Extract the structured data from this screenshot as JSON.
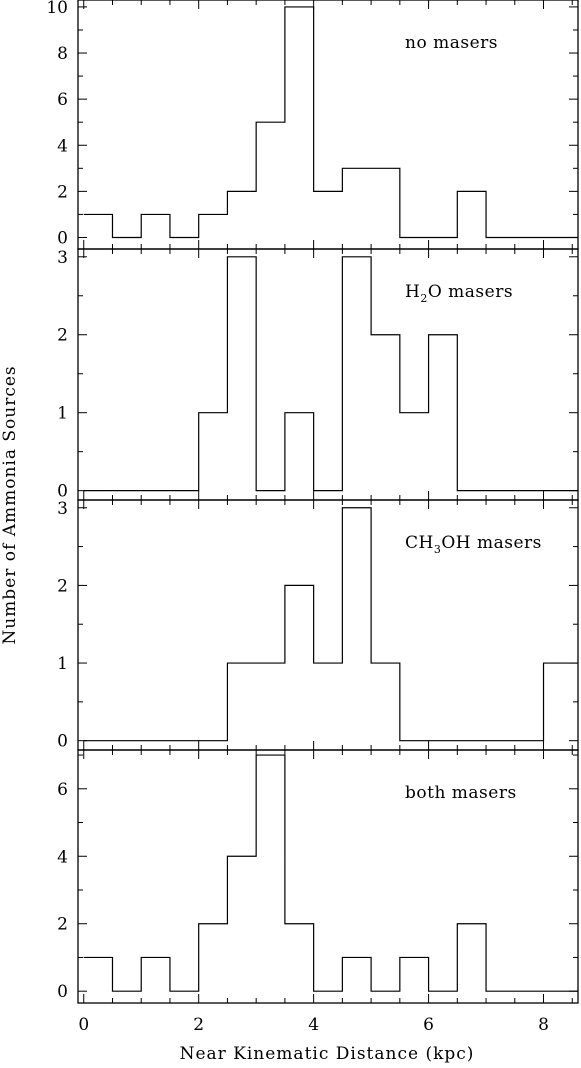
{
  "chart_data": {
    "type": "bar",
    "histtype": "step",
    "xlabel": "Near Kinematic Distance (kpc)",
    "ylabel": "Number of Ammonia Sources",
    "xlim": [
      -0.1,
      8.6
    ],
    "x_ticks": [
      "0",
      "2",
      "4",
      "6",
      "8"
    ],
    "bin_edges": [
      0,
      0.5,
      1,
      1.5,
      2,
      2.5,
      3,
      3.5,
      4,
      4.5,
      5,
      5.5,
      6,
      6.5,
      7,
      7.5,
      8,
      8.6
    ],
    "panels": [
      {
        "label": {
          "main": "no masers"
        },
        "ylim": [
          -0.5,
          10.3
        ],
        "y_ticks": [
          "0",
          "2",
          "4",
          "6",
          "8",
          "10"
        ],
        "values": [
          1,
          0,
          1,
          0,
          1,
          2,
          5,
          10,
          2,
          3,
          3,
          0,
          0,
          2,
          0,
          0,
          0
        ]
      },
      {
        "label": {
          "pre": "H",
          "sub": "2",
          "post": "O masers"
        },
        "ylim": [
          -0.12,
          3.1
        ],
        "y_ticks": [
          "0",
          "1",
          "2",
          "3"
        ],
        "values": [
          0,
          0,
          0,
          0,
          1,
          3,
          0,
          1,
          0,
          3,
          2,
          1,
          2,
          0,
          0,
          0,
          0
        ]
      },
      {
        "label": {
          "pre": "CH",
          "sub": "3",
          "post": "OH masers"
        },
        "ylim": [
          -0.12,
          3.1
        ],
        "y_ticks": [
          "0",
          "1",
          "2",
          "3"
        ],
        "values": [
          0,
          0,
          0,
          0,
          0,
          1,
          1,
          2,
          1,
          3,
          1,
          0,
          0,
          0,
          0,
          0,
          1
        ]
      },
      {
        "label": {
          "main": "both masers"
        },
        "ylim": [
          -0.35,
          7.15
        ],
        "y_ticks": [
          "0",
          "2",
          "4",
          "6"
        ],
        "values": [
          1,
          0,
          1,
          0,
          2,
          4,
          7,
          2,
          0,
          1,
          0,
          1,
          0,
          2,
          0,
          0,
          0
        ]
      }
    ]
  }
}
